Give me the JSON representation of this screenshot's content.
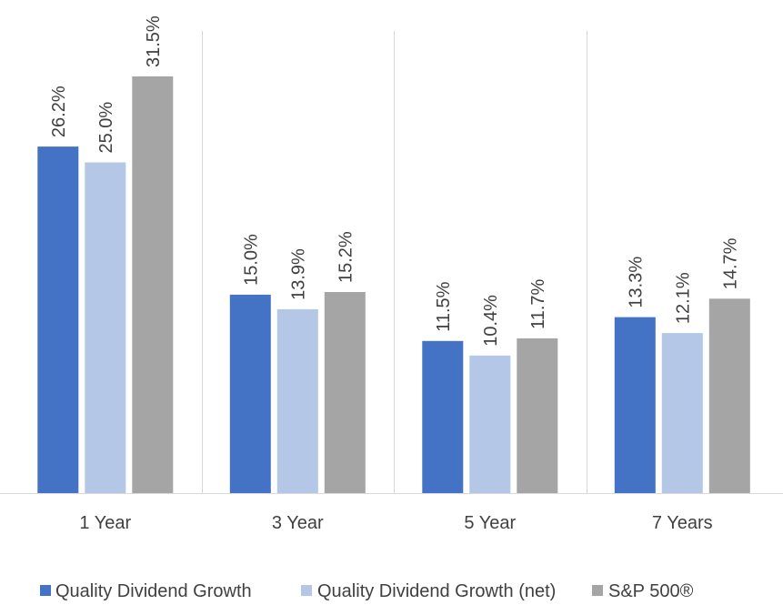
{
  "chart_data": {
    "type": "bar",
    "categories": [
      "1 Year",
      "3 Year",
      "5 Year",
      "7 Years"
    ],
    "series": [
      {
        "name": "Quality Dividend Growth",
        "values": [
          26.2,
          15.0,
          11.5,
          13.3
        ],
        "color": "#4472c4"
      },
      {
        "name": "Quality Dividend Growth (net)",
        "values": [
          25.0,
          13.9,
          10.4,
          12.1
        ],
        "color": "#b4c7e7"
      },
      {
        "name": "S&P 500®",
        "values": [
          31.5,
          15.2,
          11.7,
          14.7
        ],
        "color": "#a5a5a5"
      }
    ],
    "value_labels": [
      [
        "26.2%",
        "15.0%",
        "11.5%",
        "13.3%"
      ],
      [
        "25.0%",
        "13.9%",
        "10.4%",
        "12.1%"
      ],
      [
        "31.5%",
        "15.2%",
        "11.7%",
        "14.7%"
      ]
    ],
    "ylim": [
      0,
      35
    ],
    "grid": "vertical category separators",
    "legend": "bottom",
    "colors": {
      "axis": "#d9d9d9",
      "text": "#404040"
    }
  }
}
